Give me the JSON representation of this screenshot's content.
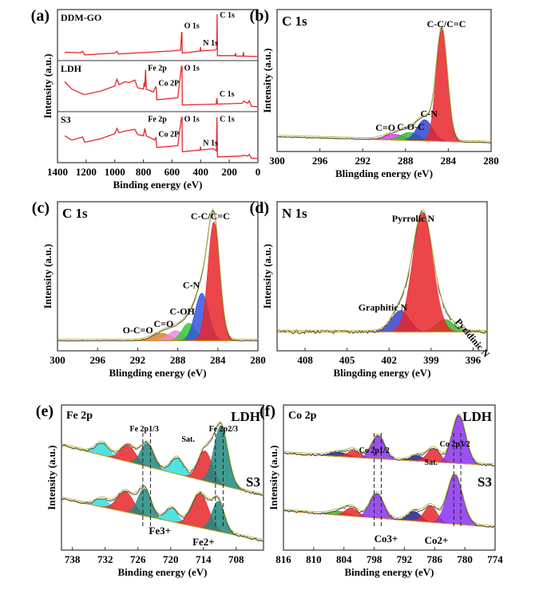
{
  "chart_data": [
    {
      "panel": "(a)",
      "type": "line",
      "xlabel": "Binding energy (eV)",
      "ylabel": "Intensity (a.u.)",
      "xlim": [
        1400,
        0
      ],
      "xticks": [
        1400,
        1200,
        1000,
        800,
        600,
        400,
        200,
        0
      ],
      "color": "#e8262a",
      "series": [
        {
          "name": "DDM-GO",
          "labels": [
            "O 1s",
            "N 1s",
            "C 1s"
          ],
          "points": [
            [
              1350,
              0.12
            ],
            [
              1240,
              0.11
            ],
            [
              1225,
              0.14
            ],
            [
              1210,
              0.06
            ],
            [
              1000,
              0.1
            ],
            [
              985,
              0.14
            ],
            [
              975,
              0.08
            ],
            [
              600,
              0.15
            ],
            [
              540,
              0.17
            ],
            [
              533,
              0.58
            ],
            [
              531,
              0.58
            ],
            [
              528,
              0.1
            ],
            [
              403,
              0.15
            ],
            [
              401,
              0.24
            ],
            [
              398,
              0.15
            ],
            [
              300,
              0.17
            ],
            [
              287,
              0.2
            ],
            [
              285,
              1.0
            ],
            [
              283,
              0.04
            ],
            [
              160,
              0.04
            ],
            [
              156,
              0.1
            ],
            [
              152,
              0.03
            ],
            [
              105,
              0.03
            ],
            [
              101,
              0.12
            ],
            [
              98,
              0.03
            ],
            [
              0,
              0.02
            ]
          ]
        },
        {
          "name": "LDH",
          "labels": [
            "Fe 2p",
            "Co 2P",
            "O 1s",
            "C 1s"
          ],
          "points": [
            [
              1350,
              0.62
            ],
            [
              1300,
              0.45
            ],
            [
              1215,
              0.32
            ],
            [
              1100,
              0.4
            ],
            [
              1000,
              0.52
            ],
            [
              985,
              0.68
            ],
            [
              970,
              0.55
            ],
            [
              930,
              0.62
            ],
            [
              900,
              0.6
            ],
            [
              860,
              0.66
            ],
            [
              840,
              0.48
            ],
            [
              800,
              0.45
            ],
            [
              795,
              0.6
            ],
            [
              790,
              0.5
            ],
            [
              785,
              0.9
            ],
            [
              780,
              0.45
            ],
            [
              730,
              0.38
            ],
            [
              715,
              0.5
            ],
            [
              710,
              0.48
            ],
            [
              706,
              0.2
            ],
            [
              560,
              0.25
            ],
            [
              534,
              0.98
            ],
            [
              530,
              0.98
            ],
            [
              528,
              0.08
            ],
            [
              292,
              0.1
            ],
            [
              286,
              0.24
            ],
            [
              283,
              0.1
            ],
            [
              110,
              0.12
            ],
            [
              100,
              0.17
            ],
            [
              70,
              0.12
            ],
            [
              60,
              0.18
            ],
            [
              45,
              0.05
            ],
            [
              0,
              0.04
            ]
          ]
        },
        {
          "name": "S3",
          "labels": [
            "Fe 2p",
            "Co 2P",
            "O 1s",
            "N 1s",
            "C 1s"
          ],
          "points": [
            [
              1350,
              0.55
            ],
            [
              1300,
              0.45
            ],
            [
              1225,
              0.52
            ],
            [
              1210,
              0.4
            ],
            [
              1100,
              0.48
            ],
            [
              1000,
              0.6
            ],
            [
              985,
              0.72
            ],
            [
              970,
              0.62
            ],
            [
              930,
              0.66
            ],
            [
              860,
              0.7
            ],
            [
              840,
              0.58
            ],
            [
              800,
              0.55
            ],
            [
              790,
              0.72
            ],
            [
              780,
              0.55
            ],
            [
              720,
              0.45
            ],
            [
              712,
              0.52
            ],
            [
              706,
              0.28
            ],
            [
              560,
              0.32
            ],
            [
              534,
              0.98
            ],
            [
              530,
              0.98
            ],
            [
              528,
              0.18
            ],
            [
              403,
              0.22
            ],
            [
              401,
              0.3
            ],
            [
              398,
              0.22
            ],
            [
              310,
              0.25
            ],
            [
              290,
              0.2
            ],
            [
              286,
              0.98
            ],
            [
              283,
              0.06
            ],
            [
              110,
              0.08
            ],
            [
              100,
              0.1
            ],
            [
              70,
              0.08
            ],
            [
              60,
              0.12
            ],
            [
              45,
              0.03
            ],
            [
              0,
              0.02
            ]
          ]
        }
      ]
    },
    {
      "panel": "(b)",
      "type": "area",
      "title": "C 1s",
      "xlabel": "Blingding energy (eV)",
      "ylabel": "Intensity (a.u.)",
      "xlim": [
        300,
        280
      ],
      "xticks": [
        300,
        296,
        292,
        288,
        284,
        280
      ],
      "background": [
        0.07,
        0.02
      ],
      "peaks": [
        {
          "name": "C=O",
          "center": 289.0,
          "height": 0.05,
          "fwhm": 2.2,
          "color": "#e040e0"
        },
        {
          "name": "C-O-C",
          "center": 287.6,
          "height": 0.07,
          "fwhm": 2.0,
          "color": "#33bb33"
        },
        {
          "name": "C-N",
          "center": 286.2,
          "height": 0.18,
          "fwhm": 1.7,
          "color": "#3344cc"
        },
        {
          "name": "C-C/C=C",
          "center": 284.6,
          "height": 0.95,
          "fwhm": 1.25,
          "color": "#e8262a"
        }
      ]
    },
    {
      "panel": "(c)",
      "type": "area",
      "title": "C 1s",
      "xlabel": "Blingding energy (eV)",
      "ylabel": "Intensity (a.u.)",
      "xlim": [
        300,
        280
      ],
      "xticks": [
        300,
        296,
        292,
        288,
        284,
        280
      ],
      "background": [
        0.03,
        0.03
      ],
      "peaks": [
        {
          "name": "O-C=O",
          "center": 289.6,
          "height": 0.06,
          "fwhm": 2.2,
          "color": "#d9822b"
        },
        {
          "name": "C=O",
          "center": 288.2,
          "height": 0.08,
          "fwhm": 1.8,
          "color": "#ee88dd"
        },
        {
          "name": "C-OH",
          "center": 286.9,
          "height": 0.14,
          "fwhm": 1.6,
          "color": "#33cc33"
        },
        {
          "name": "C-N",
          "center": 285.6,
          "height": 0.38,
          "fwhm": 1.6,
          "color": "#3355dd"
        },
        {
          "name": "C-C/C=C",
          "center": 284.4,
          "height": 0.95,
          "fwhm": 1.4,
          "color": "#e8262a"
        }
      ]
    },
    {
      "panel": "(d)",
      "type": "area",
      "title": "N 1s",
      "xlabel": "Blingding energy (eV)",
      "ylabel": "Intensity (a.u.)",
      "xlim": [
        410,
        395
      ],
      "xticks": [
        408,
        405,
        402,
        399,
        396
      ],
      "background": [
        0.1,
        0.1
      ],
      "peaks": [
        {
          "name": "Graphitic N",
          "center": 401.2,
          "height": 0.17,
          "fwhm": 1.5,
          "color": "#3344cc"
        },
        {
          "name": "Pyridinic N",
          "center": 398.0,
          "height": 0.1,
          "fwhm": 1.5,
          "color": "#33bb33"
        },
        {
          "name": "Pyrrolic N",
          "center": 399.6,
          "height": 0.95,
          "fwhm": 1.7,
          "color": "#e8262a"
        }
      ]
    },
    {
      "panel": "(e)",
      "type": "area",
      "title": "Fe 2p",
      "xlabel": "Binding energy (eV)",
      "ylabel": "Intensity (a.u.)",
      "xlim": [
        740,
        703
      ],
      "xticks": [
        738,
        732,
        726,
        720,
        714,
        708
      ],
      "annotations": [
        "Fe 2p1/3",
        "Sat.",
        "Fe 2p2/3",
        "Fe3+",
        "Fe2+"
      ],
      "stacks": [
        {
          "name": "LDH",
          "background": [
            0.72,
            0.35
          ],
          "peaks": [
            {
              "center": 732.5,
              "height": 0.09,
              "fwhm": 3,
              "color": "#33dddd"
            },
            {
              "center": 727.8,
              "height": 0.12,
              "fwhm": 3.2,
              "color": "#e8262a"
            },
            {
              "center": 724.3,
              "height": 0.17,
              "fwhm": 2.8,
              "color": "#1f8a80"
            },
            {
              "center": 718.8,
              "height": 0.12,
              "fwhm": 2.8,
              "color": "#33dddd"
            },
            {
              "center": 713.7,
              "height": 0.22,
              "fwhm": 3,
              "color": "#e8262a"
            },
            {
              "center": 710.8,
              "height": 0.43,
              "fwhm": 3,
              "color": "#1f8a80"
            }
          ]
        },
        {
          "name": "S3",
          "background": [
            0.33,
            0.02
          ],
          "peaks": [
            {
              "center": 732.5,
              "height": 0.06,
              "fwhm": 3,
              "color": "#33dddd"
            },
            {
              "center": 728.3,
              "height": 0.15,
              "fwhm": 3.5,
              "color": "#e8262a"
            },
            {
              "center": 724.8,
              "height": 0.2,
              "fwhm": 2.8,
              "color": "#1f8a80"
            },
            {
              "center": 719.8,
              "height": 0.1,
              "fwhm": 2.6,
              "color": "#33dddd"
            },
            {
              "center": 714.6,
              "height": 0.25,
              "fwhm": 3.6,
              "color": "#e8262a"
            },
            {
              "center": 711.3,
              "height": 0.22,
              "fwhm": 2.6,
              "color": "#1f8a80"
            }
          ]
        }
      ]
    },
    {
      "panel": "(f)",
      "type": "area",
      "title": "Co 2p",
      "xlabel": "Binding energy (eV)",
      "ylabel": "Intensity (a.u.)",
      "xlim": [
        816,
        774
      ],
      "xticks": [
        816,
        810,
        804,
        798,
        792,
        786,
        780,
        774
      ],
      "annotations": [
        "Co 2p1/2",
        "Sat.",
        "Co 2p3/2",
        "Co3+",
        "Co2+"
      ],
      "stacks": [
        {
          "name": "LDH",
          "background": [
            0.66,
            0.57
          ],
          "peaks": [
            {
              "center": 805,
              "height": 0.03,
              "fwhm": 4,
              "color": "#22228a"
            },
            {
              "center": 802,
              "height": 0.05,
              "fwhm": 3,
              "color": "#e8262a"
            },
            {
              "center": 797.2,
              "height": 0.17,
              "fwhm": 3,
              "color": "#8a33ee"
            },
            {
              "center": 789.5,
              "height": 0.04,
              "fwhm": 3,
              "color": "#22228a"
            },
            {
              "center": 786.2,
              "height": 0.1,
              "fwhm": 3,
              "color": "#e8262a"
            },
            {
              "center": 781.2,
              "height": 0.35,
              "fwhm": 3.2,
              "color": "#8a33ee"
            }
          ]
        },
        {
          "name": "S3",
          "background": [
            0.24,
            0.12
          ],
          "peaks": [
            {
              "center": 805,
              "height": 0.03,
              "fwhm": 4,
              "color": "#33bb33"
            },
            {
              "center": 802.5,
              "height": 0.06,
              "fwhm": 3,
              "color": "#e8262a"
            },
            {
              "center": 797.5,
              "height": 0.18,
              "fwhm": 3.2,
              "color": "#8a33ee"
            },
            {
              "center": 790,
              "height": 0.07,
              "fwhm": 3,
              "color": "#22228a"
            },
            {
              "center": 786.8,
              "height": 0.12,
              "fwhm": 3,
              "color": "#e8262a"
            },
            {
              "center": 782,
              "height": 0.36,
              "fwhm": 3.6,
              "color": "#8a33ee"
            }
          ]
        }
      ]
    }
  ]
}
